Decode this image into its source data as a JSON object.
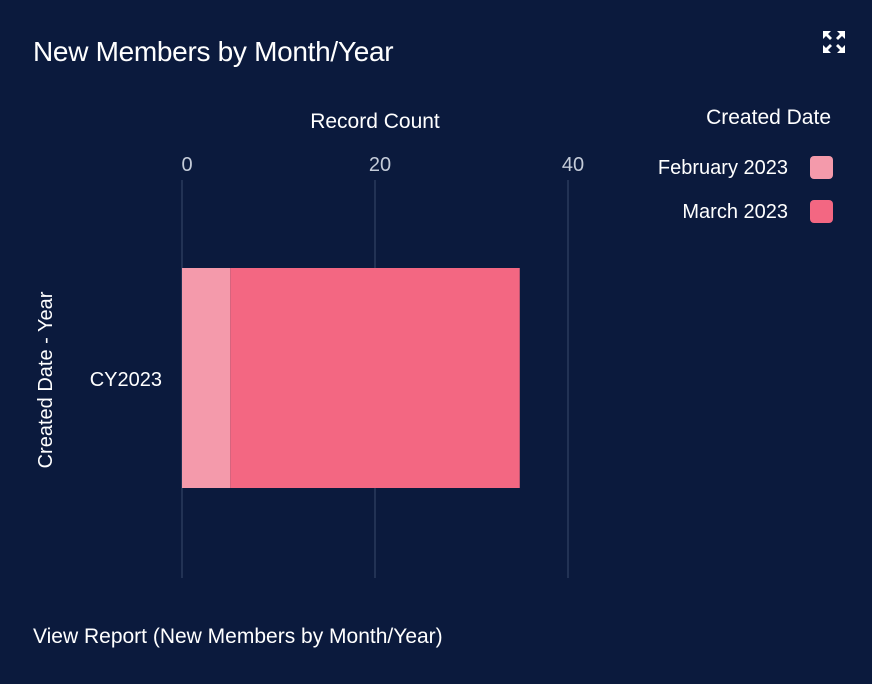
{
  "header": {
    "title": "New Members by Month/Year",
    "expand_icon": "expand-icon"
  },
  "footer": {
    "link": "View Report (New Members by Month/Year)"
  },
  "chart_data": {
    "type": "bar",
    "orientation": "horizontal",
    "stacked": true,
    "title": "New Members by Month/Year",
    "xlabel": "Record Count",
    "ylabel": "Created Date - Year",
    "categories": [
      "CY2023"
    ],
    "series": [
      {
        "name": "February 2023",
        "values": [
          5
        ],
        "color": "#f49aab"
      },
      {
        "name": "March 2023",
        "values": [
          30
        ],
        "color": "#f36782"
      }
    ],
    "xlim": [
      0,
      40
    ],
    "xticks": [
      "0",
      "20",
      "40"
    ],
    "grid": true,
    "legend": {
      "title": "Created Date",
      "placement": "top-right"
    }
  }
}
